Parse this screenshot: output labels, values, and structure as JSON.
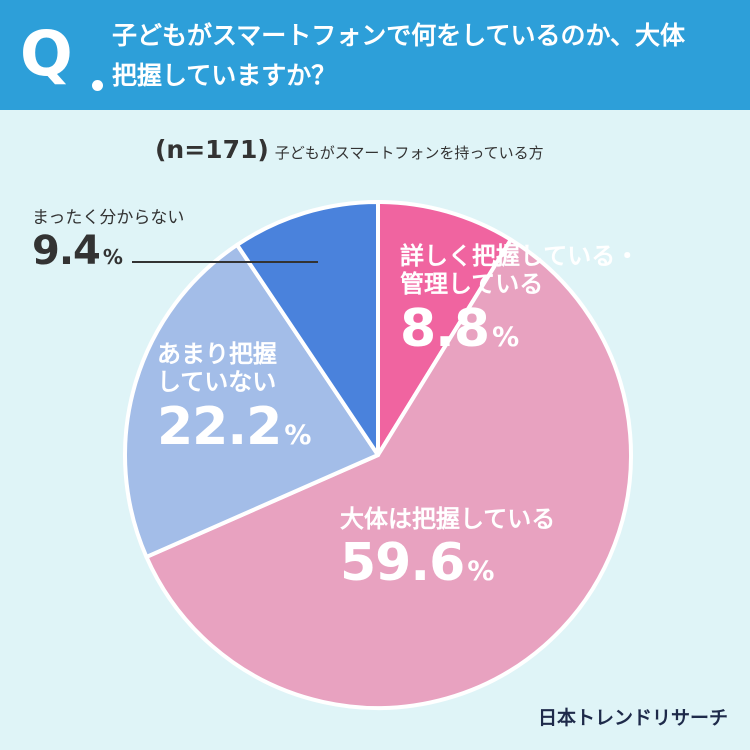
{
  "header": {
    "q_mark": "Q",
    "question_lines": [
      "子どもがスマートフォンで何をしているのか、大体",
      "把握していますか？"
    ]
  },
  "note": {
    "n_label": "(n=171)",
    "description": "子どもがスマートフォンを持っている方"
  },
  "brand": "日本トレンドリサーチ",
  "chart_data": {
    "type": "pie",
    "segments": [
      {
        "label_lines": [
          "詳しく把握している・",
          "管理している"
        ],
        "value": 8.8,
        "percent_text": "8.8",
        "color": "#f064a0"
      },
      {
        "label_lines": [
          "大体は把握している"
        ],
        "value": 59.6,
        "percent_text": "59.6",
        "color": "#e8a2c0"
      },
      {
        "label_lines": [
          "あまり把握",
          "していない"
        ],
        "value": 22.2,
        "percent_text": "22.2",
        "color": "#a3bde8"
      },
      {
        "label_lines": [
          "まったく分からない"
        ],
        "value": 9.4,
        "percent_text": "9.4",
        "color": "#4a82dc"
      }
    ],
    "percent_sign": "%"
  }
}
